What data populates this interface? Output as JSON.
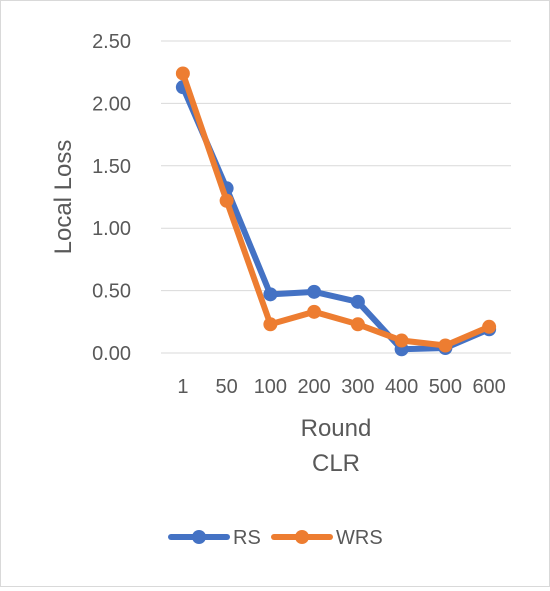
{
  "chart_data": {
    "type": "line",
    "title": "",
    "xlabel": "Round",
    "subtitle": "CLR",
    "ylabel": "Local Loss",
    "categories": [
      "1",
      "50",
      "100",
      "200",
      "300",
      "400",
      "500",
      "600"
    ],
    "yticks": [
      "0.00",
      "0.50",
      "1.00",
      "1.50",
      "2.00",
      "2.50"
    ],
    "ylim": [
      0,
      2.5
    ],
    "grid": true,
    "legend_position": "bottom",
    "series": [
      {
        "name": "RS",
        "color": "#4472C4",
        "values": [
          2.13,
          1.32,
          0.47,
          0.49,
          0.41,
          0.03,
          0.04,
          0.19
        ]
      },
      {
        "name": "WRS",
        "color": "#ED7D31",
        "values": [
          2.24,
          1.22,
          0.23,
          0.33,
          0.23,
          0.1,
          0.06,
          0.21
        ]
      }
    ]
  }
}
